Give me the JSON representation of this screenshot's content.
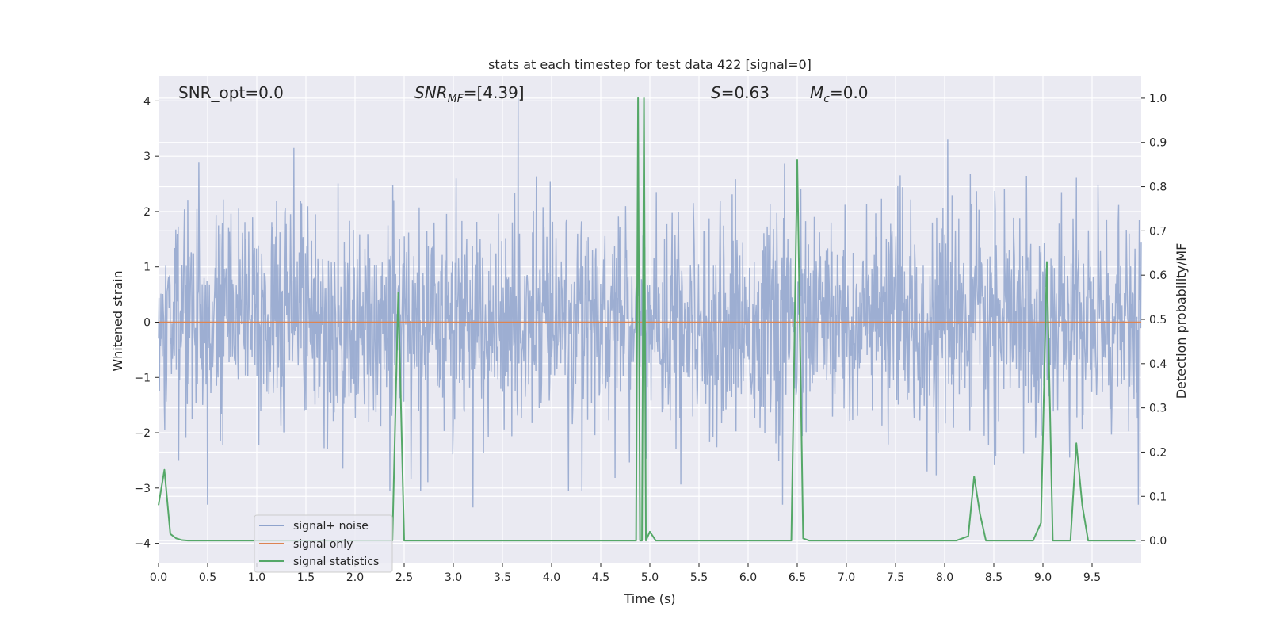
{
  "chart_data": {
    "type": "line",
    "title": "stats at each timestep for test data 422 [signal=0]",
    "xlabel": "Time (s)",
    "ylabel": "Whitened strain",
    "ylabel_right": "Detection probability/MF",
    "xlim": [
      0.0,
      10.0
    ],
    "ylim": [
      -4.35,
      4.45
    ],
    "ylim_right": [
      -0.05,
      1.05
    ],
    "x_ticks": [
      0.0,
      0.5,
      1.0,
      1.5,
      2.0,
      2.5,
      3.0,
      3.5,
      4.0,
      4.5,
      5.0,
      5.5,
      6.0,
      6.5,
      7.0,
      7.5,
      8.0,
      8.5,
      9.0,
      9.5
    ],
    "x_tick_labels": [
      "0.0",
      "0.5",
      "1.0",
      "1.5",
      "2.0",
      "2.5",
      "3.0",
      "3.5",
      "4.0",
      "4.5",
      "5.0",
      "5.5",
      "6.0",
      "6.5",
      "7.0",
      "7.5",
      "8.0",
      "8.5",
      "9.0",
      "9.5"
    ],
    "y_ticks": [
      -4,
      -3,
      -2,
      -1,
      0,
      1,
      2,
      3,
      4
    ],
    "y_tick_labels": [
      "−4",
      "−3",
      "−2",
      "−1",
      "0",
      "1",
      "2",
      "3",
      "4"
    ],
    "y_right_ticks": [
      0.0,
      0.1,
      0.2,
      0.3,
      0.4,
      0.5,
      0.6,
      0.7,
      0.8,
      0.9,
      1.0
    ],
    "y_right_tick_labels": [
      "0.0",
      "0.1",
      "0.2",
      "0.3",
      "0.4",
      "0.5",
      "0.6",
      "0.7",
      "0.8",
      "0.9",
      "1.0"
    ],
    "grid": true,
    "legend": {
      "placement": "lower-left",
      "entries": [
        "signal+ noise",
        "signal only",
        "signal statistics"
      ]
    },
    "annotations": {
      "snr_opt": "SNR_opt=0.0",
      "snr_mf_main": "SNR",
      "snr_mf_sub": "MF",
      "snr_mf_val": "=[4.39]",
      "s_main": "S",
      "s_val": "=0.63",
      "mc_main": "M",
      "mc_sub": "c",
      "mc_val": "=0.0"
    },
    "series": [
      {
        "name": "signal+ noise",
        "axis": "left",
        "color": "#8fa3cc",
        "description_values": "whitened strain noise, roughly Gaussian, spikes from -3.4 to 4.0",
        "x_range": [
          0.0,
          10.0
        ],
        "n_samples": 2048,
        "envelope_peaks": [
          {
            "x": 0.5,
            "y": -3.3
          },
          {
            "x": 1.38,
            "y": 3.15
          },
          {
            "x": 3.2,
            "y": -3.35
          },
          {
            "x": 3.66,
            "y": 4.05
          },
          {
            "x": 4.88,
            "y": 4.0
          },
          {
            "x": 6.35,
            "y": -3.3
          },
          {
            "x": 8.03,
            "y": 3.3
          },
          {
            "x": 9.97,
            "y": -3.3
          }
        ]
      },
      {
        "name": "signal only",
        "axis": "left",
        "color": "#dd8452",
        "x": [
          0.0,
          10.0
        ],
        "y": [
          0.0,
          0.0
        ]
      },
      {
        "name": "signal statistics",
        "axis": "right",
        "color": "#55a868",
        "x": [
          0.0,
          0.06,
          0.12,
          0.18,
          0.24,
          0.3,
          0.5,
          1.0,
          1.5,
          2.0,
          2.38,
          2.44,
          2.5,
          3.0,
          3.5,
          4.0,
          4.5,
          4.8,
          4.86,
          4.88,
          4.9,
          4.92,
          4.94,
          4.96,
          5.0,
          5.06,
          5.1,
          5.5,
          6.0,
          6.44,
          6.5,
          6.56,
          6.62,
          7.0,
          7.5,
          8.0,
          8.12,
          8.18,
          8.24,
          8.3,
          8.36,
          8.42,
          8.48,
          8.9,
          8.98,
          9.04,
          9.1,
          9.16,
          9.28,
          9.34,
          9.4,
          9.46,
          9.94
        ],
        "y": [
          0.08,
          0.16,
          0.015,
          0.005,
          0.001,
          0.0,
          0.0,
          0.0,
          0.0,
          0.0,
          0.0,
          0.56,
          0.0,
          0.0,
          0.0,
          0.0,
          0.0,
          0.0,
          0.0,
          1.0,
          0.0,
          0.0,
          1.0,
          0.0,
          0.02,
          0.0,
          0.0,
          0.0,
          0.0,
          0.0,
          0.86,
          0.005,
          0.0,
          0.0,
          0.0,
          0.0,
          0.0,
          0.005,
          0.01,
          0.145,
          0.06,
          0.0,
          0.0,
          0.0,
          0.04,
          0.63,
          0.0,
          0.0,
          0.0,
          0.22,
          0.08,
          0.0,
          0.0
        ]
      }
    ]
  }
}
